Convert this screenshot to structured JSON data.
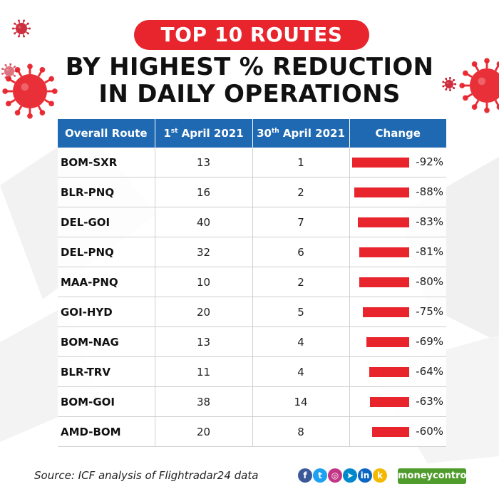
{
  "badge": "TOP 10 ROUTES",
  "title_line1": "BY HIGHEST % REDUCTION",
  "title_line2": "IN DAILY OPERATIONS",
  "headers": {
    "route": "Overall Route",
    "april1_num": "1",
    "april1_sup": "st",
    "april1_rest": " April 2021",
    "april30_num": "30",
    "april30_sup": "th",
    "april30_rest": " April 2021",
    "change": "Change"
  },
  "rows": [
    {
      "route": "BOM-SXR",
      "apr1": "13",
      "apr30": "1",
      "change_label": "-92%"
    },
    {
      "route": "BLR-PNQ",
      "apr1": "16",
      "apr30": "2",
      "change_label": "-88%"
    },
    {
      "route": "DEL-GOI",
      "apr1": "40",
      "apr30": "7",
      "change_label": "-83%"
    },
    {
      "route": "DEL-PNQ",
      "apr1": "32",
      "apr30": "6",
      "change_label": "-81%"
    },
    {
      "route": "MAA-PNQ",
      "apr1": "10",
      "apr30": "2",
      "change_label": "-80%"
    },
    {
      "route": "GOI-HYD",
      "apr1": "20",
      "apr30": "5",
      "change_label": "-75%"
    },
    {
      "route": "BOM-NAG",
      "apr1": "13",
      "apr30": "4",
      "change_label": "-69%"
    },
    {
      "route": "BLR-TRV",
      "apr1": "11",
      "apr30": "4",
      "change_label": "-64%"
    },
    {
      "route": "BOM-GOI",
      "apr1": "38",
      "apr30": "14",
      "change_label": "-63%"
    },
    {
      "route": "AMD-BOM",
      "apr1": "20",
      "apr30": "8",
      "change_label": "-60%"
    }
  ],
  "chart_data": {
    "type": "table",
    "title": "TOP 10 ROUTES BY HIGHEST % REDUCTION IN DAILY OPERATIONS",
    "columns": [
      "Overall Route",
      "1st April 2021",
      "30th April 2021",
      "Change"
    ],
    "categories": [
      "BOM-SXR",
      "BLR-PNQ",
      "DEL-GOI",
      "DEL-PNQ",
      "MAA-PNQ",
      "GOI-HYD",
      "BOM-NAG",
      "BLR-TRV",
      "BOM-GOI",
      "AMD-BOM"
    ],
    "series": [
      {
        "name": "1st April 2021",
        "values": [
          13,
          16,
          40,
          32,
          10,
          20,
          13,
          11,
          38,
          20
        ]
      },
      {
        "name": "30th April 2021",
        "values": [
          1,
          2,
          7,
          6,
          2,
          5,
          4,
          4,
          14,
          8
        ]
      },
      {
        "name": "Change",
        "values": [
          -92,
          -88,
          -83,
          -81,
          -80,
          -75,
          -69,
          -64,
          -63,
          -60
        ],
        "unit": "%"
      }
    ]
  },
  "footer": {
    "source": "Source: ICF analysis of Flightradar24 data",
    "brand": "moneycontrol",
    "social_icons": [
      {
        "name": "facebook-icon",
        "glyph": "f",
        "color": "#3b5998"
      },
      {
        "name": "twitter-icon",
        "glyph": "t",
        "color": "#1da1f2"
      },
      {
        "name": "instagram-icon",
        "glyph": "◎",
        "color": "#c13584"
      },
      {
        "name": "telegram-icon",
        "glyph": "➤",
        "color": "#0088cc"
      },
      {
        "name": "linkedin-icon",
        "glyph": "in",
        "color": "#0a66c2"
      },
      {
        "name": "koo-icon",
        "glyph": "k",
        "color": "#f5b800"
      }
    ]
  },
  "colors": {
    "accent_red": "#e8242c",
    "header_blue": "#1f69b2",
    "brand_green": "#4f9c2d"
  }
}
